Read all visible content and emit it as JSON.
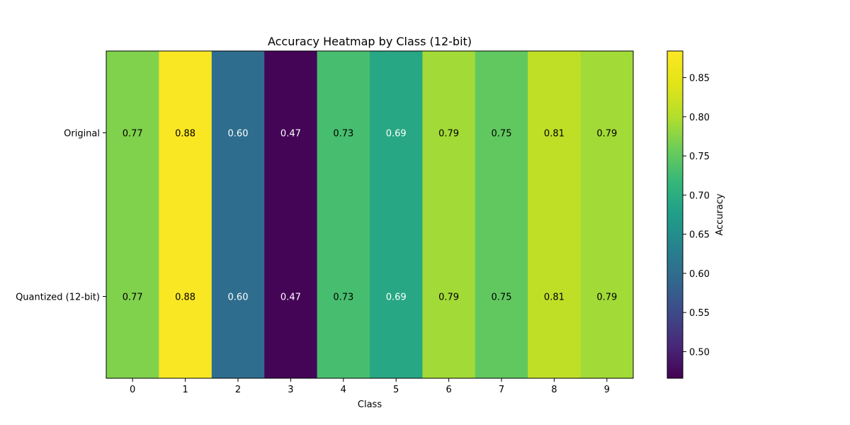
{
  "chart_data": {
    "type": "heatmap",
    "title": "Accuracy Heatmap by Class (12-bit)",
    "xlabel": "Class",
    "ylabel": "",
    "x_categories": [
      "0",
      "1",
      "2",
      "3",
      "4",
      "5",
      "6",
      "7",
      "8",
      "9"
    ],
    "y_categories": [
      "Original",
      "Quantized (12-bit)"
    ],
    "values": [
      [
        0.77,
        0.88,
        0.6,
        0.47,
        0.73,
        0.69,
        0.79,
        0.75,
        0.81,
        0.79
      ],
      [
        0.77,
        0.88,
        0.6,
        0.47,
        0.73,
        0.69,
        0.79,
        0.75,
        0.81,
        0.79
      ]
    ],
    "value_format_decimals": 2,
    "colormap": "viridis",
    "color_range": [
      0.466,
      0.884
    ],
    "colorbar": {
      "label": "Accuracy",
      "ticks": [
        0.5,
        0.55,
        0.6,
        0.65,
        0.7,
        0.75,
        0.8,
        0.85
      ],
      "tick_labels": [
        "0.50",
        "0.55",
        "0.60",
        "0.65",
        "0.70",
        "0.75",
        "0.80",
        "0.85"
      ],
      "placement": "right"
    },
    "grid": false
  }
}
